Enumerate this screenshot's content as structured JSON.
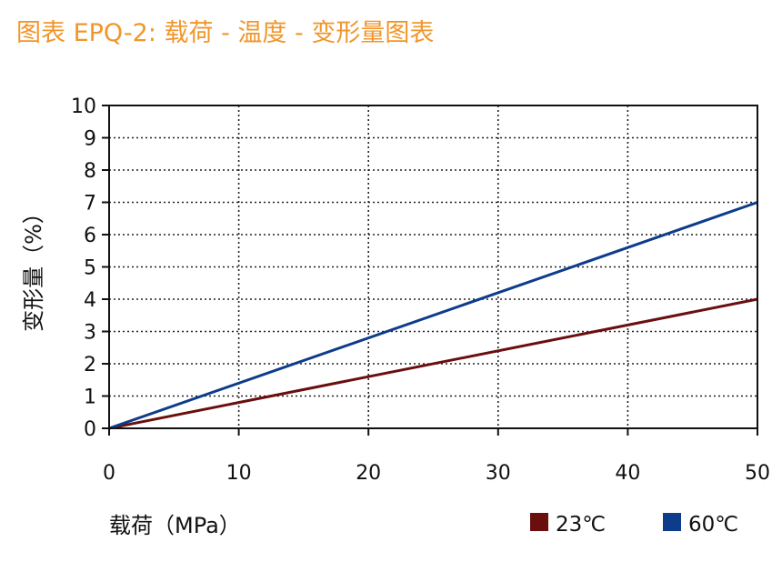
{
  "title": "图表 EPQ-2: 载荷 - 温度 - 变形量图表",
  "colors": {
    "title": "#f0962b",
    "axis": "#111111",
    "grid": "#222222"
  },
  "chart_data": {
    "type": "line",
    "xlabel": "载荷（MPa）",
    "ylabel": "变形量（%）",
    "xlim": [
      0,
      50
    ],
    "ylim": [
      0,
      10
    ],
    "xticks": [
      0,
      10,
      20,
      30,
      40,
      50
    ],
    "yticks": [
      0,
      1,
      2,
      3,
      4,
      5,
      6,
      7,
      8,
      9,
      10
    ],
    "grid": true,
    "legend_position": "bottom-right",
    "series": [
      {
        "name": "23℃",
        "color": "#6b0e0e",
        "x": [
          0,
          50
        ],
        "y": [
          0,
          4
        ]
      },
      {
        "name": "60℃",
        "color": "#0d3c8a",
        "x": [
          0,
          50
        ],
        "y": [
          0,
          7
        ]
      }
    ]
  }
}
